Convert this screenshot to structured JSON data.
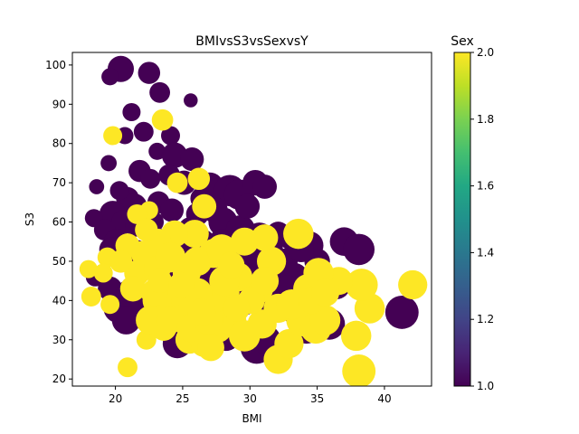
{
  "chart_data": {
    "type": "scatter",
    "title": "BMIvsS3vsSexvsY",
    "xlabel": "BMI",
    "ylabel": "S3",
    "xlim": [
      16.8,
      43.5
    ],
    "ylim": [
      18.2,
      103.2
    ],
    "xticks": [
      20,
      25,
      30,
      35,
      40
    ],
    "yticks": [
      20,
      30,
      40,
      50,
      60,
      70,
      80,
      90,
      100
    ],
    "grid": false,
    "colorbar": {
      "title": "Sex",
      "range": [
        1.0,
        2.0
      ],
      "ticks": [
        "1.0",
        "1.2",
        "1.4",
        "1.6",
        "1.8",
        "2.0"
      ],
      "colormap": "viridis",
      "colors": [
        "#440154",
        "#482475",
        "#414487",
        "#355f8d",
        "#2a788e",
        "#21918c",
        "#22a884",
        "#44bf70",
        "#7ad151",
        "#bddf26",
        "#fde725"
      ]
    },
    "size_note": "marker size encodes Y",
    "points_sex1": [
      [
        20.4,
        99,
        210
      ],
      [
        22.5,
        98,
        150
      ],
      [
        19.6,
        97,
        90
      ],
      [
        23.3,
        93,
        130
      ],
      [
        25.6,
        91,
        60
      ],
      [
        21.2,
        88,
        100
      ],
      [
        22.1,
        83,
        120
      ],
      [
        20.7,
        82,
        90
      ],
      [
        24.1,
        82,
        110
      ],
      [
        23.1,
        78,
        90
      ],
      [
        24.4,
        77,
        200
      ],
      [
        25.7,
        76,
        170
      ],
      [
        19.5,
        75,
        80
      ],
      [
        21.8,
        73,
        150
      ],
      [
        22.6,
        71,
        120
      ],
      [
        24.0,
        72,
        140
      ],
      [
        25.1,
        70,
        180
      ],
      [
        27.0,
        69,
        250
      ],
      [
        28.5,
        68,
        300
      ],
      [
        29.2,
        67,
        280
      ],
      [
        30.4,
        70,
        200
      ],
      [
        31.1,
        69,
        180
      ],
      [
        18.6,
        69,
        70
      ],
      [
        20.9,
        66,
        160
      ],
      [
        21.4,
        64,
        200
      ],
      [
        19.8,
        62,
        220
      ],
      [
        20.6,
        60,
        180
      ],
      [
        23.2,
        65,
        150
      ],
      [
        24.2,
        63,
        170
      ],
      [
        26.1,
        62,
        160
      ],
      [
        27.4,
        63,
        200
      ],
      [
        28.0,
        60,
        260
      ],
      [
        29.3,
        58,
        260
      ],
      [
        30.7,
        56,
        280
      ],
      [
        32.1,
        57,
        180
      ],
      [
        33.1,
        56,
        200
      ],
      [
        34.4,
        54,
        250
      ],
      [
        37.0,
        55,
        250
      ],
      [
        38.1,
        53,
        300
      ],
      [
        35.0,
        50,
        200
      ],
      [
        18.4,
        61,
        100
      ],
      [
        19.2,
        58,
        140
      ],
      [
        20.1,
        55,
        200
      ],
      [
        19.7,
        53,
        180
      ],
      [
        21.6,
        52,
        220
      ],
      [
        22.4,
        49,
        240
      ],
      [
        23.4,
        51,
        200
      ],
      [
        24.5,
        48,
        300
      ],
      [
        25.3,
        52,
        280
      ],
      [
        26.2,
        49,
        220
      ],
      [
        27.2,
        48,
        260
      ],
      [
        28.3,
        47,
        220
      ],
      [
        29.1,
        50,
        240
      ],
      [
        30.3,
        48,
        280
      ],
      [
        31.2,
        47,
        260
      ],
      [
        32.2,
        45,
        220
      ],
      [
        33.3,
        46,
        240
      ],
      [
        34.1,
        44,
        280
      ],
      [
        35.4,
        43,
        240
      ],
      [
        36.4,
        44,
        260
      ],
      [
        18.5,
        46,
        110
      ],
      [
        19.6,
        43,
        180
      ],
      [
        21.0,
        42,
        200
      ],
      [
        22.1,
        40,
        220
      ],
      [
        23.3,
        38,
        200
      ],
      [
        24.2,
        41,
        220
      ],
      [
        25.2,
        39,
        240
      ],
      [
        26.6,
        38,
        220
      ],
      [
        27.6,
        36,
        240
      ],
      [
        28.6,
        38,
        220
      ],
      [
        29.6,
        40,
        260
      ],
      [
        31.6,
        39,
        240
      ],
      [
        33.6,
        37,
        280
      ],
      [
        20.2,
        38,
        260
      ],
      [
        20.8,
        35,
        250
      ],
      [
        24.6,
        29,
        260
      ],
      [
        28.2,
        31,
        280
      ],
      [
        30.5,
        28,
        320
      ],
      [
        31.2,
        30,
        260
      ],
      [
        34.2,
        33,
        300
      ],
      [
        35.9,
        34,
        300
      ],
      [
        41.3,
        37,
        340
      ],
      [
        27.9,
        44,
        240
      ],
      [
        30.0,
        52,
        220
      ],
      [
        26.5,
        55,
        180
      ],
      [
        25.6,
        58,
        200
      ],
      [
        22.9,
        56,
        160
      ],
      [
        24.8,
        55,
        200
      ],
      [
        32.6,
        50,
        200
      ],
      [
        31.6,
        53,
        160
      ],
      [
        29.8,
        45,
        220
      ],
      [
        26.8,
        45,
        200
      ],
      [
        23.9,
        46,
        180
      ],
      [
        22.8,
        60,
        140
      ],
      [
        20.3,
        68,
        110
      ],
      [
        26.4,
        66,
        150
      ],
      [
        29.8,
        64,
        190
      ],
      [
        33.8,
        53,
        200
      ],
      [
        32.8,
        43,
        220
      ],
      [
        21.5,
        59,
        140
      ],
      [
        27.9,
        55,
        200
      ],
      [
        30.8,
        46,
        210
      ],
      [
        25.8,
        44,
        190
      ],
      [
        28.8,
        42,
        230
      ],
      [
        23.7,
        43,
        200
      ]
    ],
    "points_sex2": [
      [
        23.5,
        86,
        140
      ],
      [
        19.8,
        82,
        110
      ],
      [
        24.6,
        70,
        130
      ],
      [
        26.2,
        71,
        150
      ],
      [
        22.5,
        63,
        100
      ],
      [
        21.6,
        62,
        120
      ],
      [
        19.4,
        51,
        120
      ],
      [
        18.0,
        48,
        100
      ],
      [
        19.1,
        47,
        110
      ],
      [
        18.2,
        41,
        120
      ],
      [
        19.6,
        39,
        110
      ],
      [
        20.9,
        23,
        120
      ],
      [
        22.3,
        30,
        120
      ],
      [
        23.6,
        33,
        200
      ],
      [
        24.8,
        36,
        260
      ],
      [
        25.5,
        30,
        240
      ],
      [
        26.6,
        29,
        220
      ],
      [
        27.6,
        33,
        260
      ],
      [
        28.6,
        35,
        280
      ],
      [
        29.6,
        31,
        300
      ],
      [
        30.9,
        34,
        260
      ],
      [
        32.1,
        25,
        260
      ],
      [
        32.9,
        29,
        260
      ],
      [
        33.9,
        35,
        320
      ],
      [
        34.9,
        33,
        300
      ],
      [
        35.6,
        35,
        280
      ],
      [
        37.9,
        31,
        280
      ],
      [
        38.1,
        22,
        340
      ],
      [
        38.9,
        38,
        280
      ],
      [
        38.3,
        44,
        320
      ],
      [
        42.1,
        44,
        260
      ],
      [
        36.6,
        45,
        240
      ],
      [
        34.3,
        43,
        260
      ],
      [
        35.1,
        47,
        280
      ],
      [
        33.6,
        57,
        280
      ],
      [
        31.6,
        50,
        260
      ],
      [
        30.6,
        43,
        280
      ],
      [
        29.1,
        46,
        260
      ],
      [
        28.1,
        42,
        280
      ],
      [
        27.1,
        40,
        260
      ],
      [
        26.1,
        42,
        260
      ],
      [
        25.1,
        40,
        280
      ],
      [
        24.1,
        42,
        280
      ],
      [
        23.1,
        40,
        260
      ],
      [
        22.6,
        35,
        260
      ],
      [
        24.1,
        35,
        220
      ],
      [
        25.6,
        33,
        240
      ],
      [
        26.9,
        35,
        260
      ],
      [
        28.1,
        45,
        280
      ],
      [
        27.3,
        52,
        260
      ],
      [
        25.9,
        57,
        240
      ],
      [
        24.4,
        57,
        220
      ],
      [
        23.2,
        55,
        200
      ],
      [
        22.1,
        52,
        200
      ],
      [
        20.9,
        54,
        180
      ],
      [
        21.6,
        47,
        200
      ],
      [
        23.1,
        48,
        220
      ],
      [
        24.1,
        51,
        280
      ],
      [
        26.1,
        50,
        260
      ],
      [
        27.9,
        53,
        280
      ],
      [
        29.6,
        55,
        240
      ],
      [
        31.1,
        56,
        220
      ],
      [
        30.1,
        40,
        220
      ],
      [
        32.1,
        38,
        260
      ],
      [
        33.1,
        39,
        280
      ],
      [
        34.6,
        40,
        220
      ],
      [
        22.3,
        58,
        160
      ],
      [
        26.6,
        64,
        180
      ],
      [
        28.6,
        49,
        220
      ],
      [
        31.1,
        45,
        240
      ],
      [
        21.3,
        43,
        200
      ],
      [
        22.9,
        42,
        220
      ],
      [
        25.3,
        47,
        240
      ],
      [
        27.1,
        28,
        220
      ],
      [
        23.3,
        45,
        180
      ],
      [
        29.0,
        38,
        220
      ],
      [
        26.4,
        37,
        240
      ],
      [
        35.6,
        42,
        240
      ],
      [
        20.4,
        50,
        160
      ],
      [
        24.9,
        44,
        200
      ]
    ]
  }
}
